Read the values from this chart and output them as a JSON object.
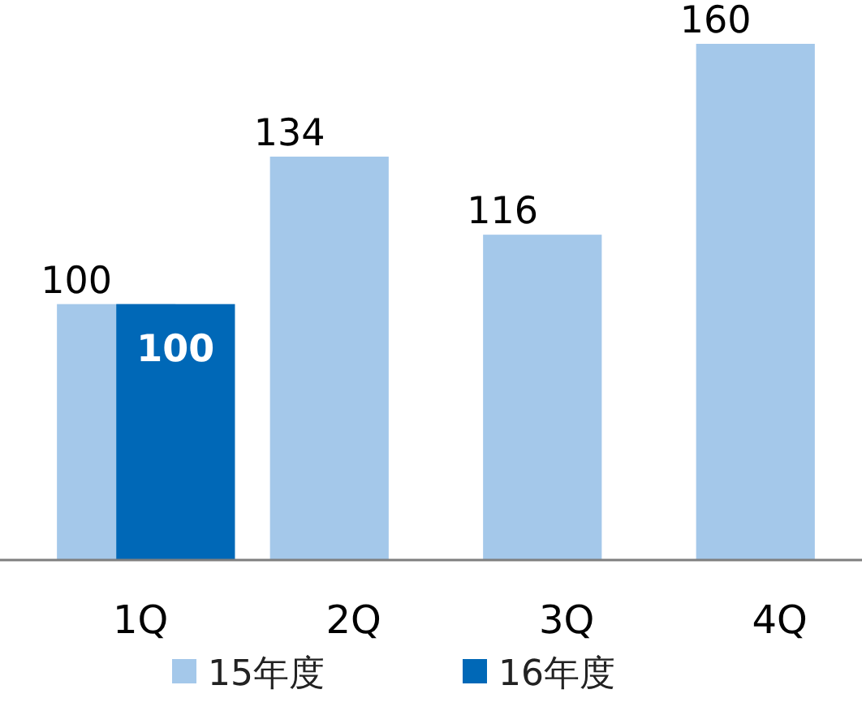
{
  "chart_data": {
    "type": "bar",
    "categories": [
      "1Q",
      "2Q",
      "3Q",
      "4Q"
    ],
    "series": [
      {
        "name": "15年度",
        "color": "#a4c8ea",
        "values": [
          100,
          134,
          116,
          160
        ]
      },
      {
        "name": "16年度",
        "color": "#0068b7",
        "values": [
          100,
          null,
          null,
          null
        ]
      }
    ],
    "ylim": [
      41,
      160
    ],
    "data_labels": true,
    "legend": "bottom",
    "tick_labels": "x"
  }
}
